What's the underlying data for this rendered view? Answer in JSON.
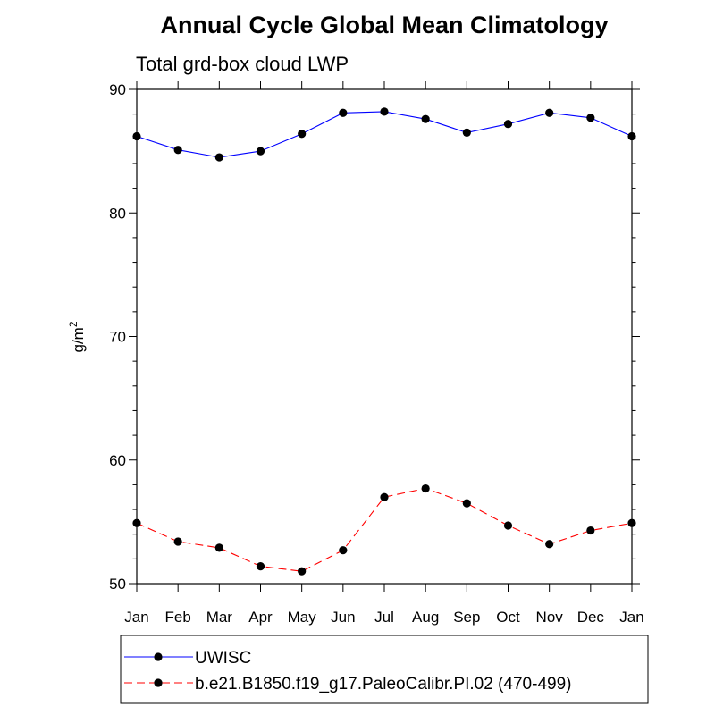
{
  "chart_data": {
    "type": "line",
    "title": "Annual Cycle Global Mean Climatology",
    "subtitle": "Total grd-box cloud LWP",
    "ylabel": "g/m",
    "ylabel_sup": "2",
    "xlabel": "",
    "categories": [
      "Jan",
      "Feb",
      "Mar",
      "Apr",
      "May",
      "Jun",
      "Jul",
      "Aug",
      "Sep",
      "Oct",
      "Nov",
      "Dec",
      "Jan"
    ],
    "ylim": [
      50,
      90
    ],
    "yticks": [
      50,
      60,
      70,
      80,
      90
    ],
    "series": [
      {
        "name": "UWISC",
        "color": "#0000ff",
        "dash": "solid",
        "values": [
          86.2,
          85.1,
          84.5,
          85.0,
          86.4,
          88.1,
          88.2,
          87.6,
          86.5,
          87.2,
          88.1,
          87.7,
          86.2
        ]
      },
      {
        "name": "b.e21.B1850.f19_g17.PaleoCalibr.PI.02 (470-499)",
        "color": "#ff0000",
        "dash": "dashed",
        "values": [
          54.9,
          53.4,
          52.9,
          51.4,
          51.0,
          52.7,
          57.0,
          57.7,
          56.5,
          54.7,
          53.2,
          54.3,
          54.9
        ]
      }
    ],
    "legend_position": "bottom"
  }
}
